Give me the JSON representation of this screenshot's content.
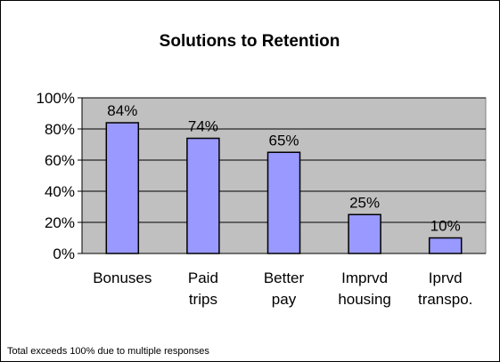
{
  "chart_data": {
    "type": "bar",
    "title": "Solutions to Retention",
    "categories": [
      "Bonuses",
      "Paid trips",
      "Better pay",
      "Imprvd housing",
      "Iprvd transpo."
    ],
    "values": [
      84,
      74,
      65,
      25,
      10
    ],
    "value_labels": [
      "84%",
      "74%",
      "65%",
      "25%",
      "10%"
    ],
    "color": "#9999ff",
    "ylim": [
      0,
      100
    ],
    "yticks": [
      {
        "value": 0,
        "label": "0%"
      },
      {
        "value": 20,
        "label": "20%"
      },
      {
        "value": 40,
        "label": "40%"
      },
      {
        "value": 60,
        "label": "60%"
      },
      {
        "value": 80,
        "label": "80%"
      },
      {
        "value": 100,
        "label": "100%"
      }
    ],
    "grid": true,
    "note": "Total exceeds 100% due to multiple responses"
  }
}
